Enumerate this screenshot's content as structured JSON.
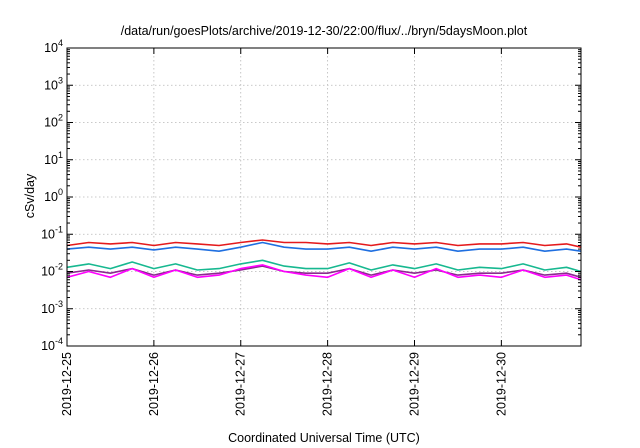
{
  "chart_data": {
    "type": "line",
    "title": "/data/run/goesPlots/archive/2019-12-30/22:00/flux/../bryn/5daysMoon.plot",
    "xlabel": "Coordinated Universal Time (UTC)",
    "ylabel": "cSv/day",
    "y_scale": "log",
    "ylim": [
      0.0001,
      10000
    ],
    "xlim": [
      "2019-12-25 00:00",
      "2019-12-30 22:00"
    ],
    "grid": true,
    "x_ticks": [
      "2019-12-25",
      "2019-12-26",
      "2019-12-27",
      "2019-12-28",
      "2019-12-29",
      "2019-12-30"
    ],
    "y_ticks": [
      {
        "value": 0.0001,
        "base": "10",
        "exp": "-4"
      },
      {
        "value": 0.001,
        "base": "10",
        "exp": "-3"
      },
      {
        "value": 0.01,
        "base": "10",
        "exp": "-2"
      },
      {
        "value": 0.1,
        "base": "10",
        "exp": "-1"
      },
      {
        "value": 1,
        "base": "10",
        "exp": "0"
      },
      {
        "value": 10,
        "base": "10",
        "exp": "1"
      },
      {
        "value": 100,
        "base": "10",
        "exp": "2"
      },
      {
        "value": 1000,
        "base": "10",
        "exp": "3"
      },
      {
        "value": 10000,
        "base": "10",
        "exp": "4"
      }
    ],
    "series": [
      {
        "color": "#e41a1c",
        "x": [
          "2019-12-25 00:00",
          "2019-12-25 06:00",
          "2019-12-25 12:00",
          "2019-12-25 18:00",
          "2019-12-26 00:00",
          "2019-12-26 06:00",
          "2019-12-26 12:00",
          "2019-12-26 18:00",
          "2019-12-27 00:00",
          "2019-12-27 06:00",
          "2019-12-27 12:00",
          "2019-12-27 18:00",
          "2019-12-28 00:00",
          "2019-12-28 06:00",
          "2019-12-28 12:00",
          "2019-12-28 18:00",
          "2019-12-29 00:00",
          "2019-12-29 06:00",
          "2019-12-29 12:00",
          "2019-12-29 18:00",
          "2019-12-30 00:00",
          "2019-12-30 06:00",
          "2019-12-30 12:00",
          "2019-12-30 18:00",
          "2019-12-30 22:00"
        ],
        "y": [
          0.05,
          0.06,
          0.055,
          0.06,
          0.05,
          0.06,
          0.055,
          0.05,
          0.06,
          0.07,
          0.06,
          0.06,
          0.055,
          0.06,
          0.05,
          0.06,
          0.055,
          0.06,
          0.05,
          0.055,
          0.055,
          0.06,
          0.05,
          0.055,
          0.045
        ]
      },
      {
        "color": "#1f6fe0",
        "x": [
          "2019-12-25 00:00",
          "2019-12-25 06:00",
          "2019-12-25 12:00",
          "2019-12-25 18:00",
          "2019-12-26 00:00",
          "2019-12-26 06:00",
          "2019-12-26 12:00",
          "2019-12-26 18:00",
          "2019-12-27 00:00",
          "2019-12-27 06:00",
          "2019-12-27 12:00",
          "2019-12-27 18:00",
          "2019-12-28 00:00",
          "2019-12-28 06:00",
          "2019-12-28 12:00",
          "2019-12-28 18:00",
          "2019-12-29 00:00",
          "2019-12-29 06:00",
          "2019-12-29 12:00",
          "2019-12-29 18:00",
          "2019-12-30 00:00",
          "2019-12-30 06:00",
          "2019-12-30 12:00",
          "2019-12-30 18:00",
          "2019-12-30 22:00"
        ],
        "y": [
          0.04,
          0.045,
          0.04,
          0.045,
          0.038,
          0.045,
          0.04,
          0.035,
          0.045,
          0.06,
          0.045,
          0.04,
          0.04,
          0.045,
          0.035,
          0.045,
          0.04,
          0.045,
          0.035,
          0.04,
          0.04,
          0.045,
          0.035,
          0.04,
          0.035
        ]
      },
      {
        "color": "#17b890",
        "x": [
          "2019-12-25 00:00",
          "2019-12-25 06:00",
          "2019-12-25 12:00",
          "2019-12-25 18:00",
          "2019-12-26 00:00",
          "2019-12-26 06:00",
          "2019-12-26 12:00",
          "2019-12-26 18:00",
          "2019-12-27 00:00",
          "2019-12-27 06:00",
          "2019-12-27 12:00",
          "2019-12-27 18:00",
          "2019-12-28 00:00",
          "2019-12-28 06:00",
          "2019-12-28 12:00",
          "2019-12-28 18:00",
          "2019-12-29 00:00",
          "2019-12-29 06:00",
          "2019-12-29 12:00",
          "2019-12-29 18:00",
          "2019-12-30 00:00",
          "2019-12-30 06:00",
          "2019-12-30 12:00",
          "2019-12-30 18:00",
          "2019-12-30 22:00"
        ],
        "y": [
          0.013,
          0.016,
          0.012,
          0.018,
          0.012,
          0.016,
          0.011,
          0.012,
          0.016,
          0.02,
          0.014,
          0.012,
          0.012,
          0.017,
          0.011,
          0.015,
          0.012,
          0.016,
          0.011,
          0.013,
          0.012,
          0.016,
          0.011,
          0.013,
          0.01
        ]
      },
      {
        "color": "#8b2a8e",
        "x": [
          "2019-12-25 00:00",
          "2019-12-25 06:00",
          "2019-12-25 12:00",
          "2019-12-25 18:00",
          "2019-12-26 00:00",
          "2019-12-26 06:00",
          "2019-12-26 12:00",
          "2019-12-26 18:00",
          "2019-12-27 00:00",
          "2019-12-27 06:00",
          "2019-12-27 12:00",
          "2019-12-27 18:00",
          "2019-12-28 00:00",
          "2019-12-28 06:00",
          "2019-12-28 12:00",
          "2019-12-28 18:00",
          "2019-12-29 00:00",
          "2019-12-29 06:00",
          "2019-12-29 12:00",
          "2019-12-29 18:00",
          "2019-12-30 00:00",
          "2019-12-30 06:00",
          "2019-12-30 12:00",
          "2019-12-30 18:00",
          "2019-12-30 22:00"
        ],
        "y": [
          0.009,
          0.011,
          0.009,
          0.012,
          0.008,
          0.011,
          0.008,
          0.009,
          0.011,
          0.014,
          0.01,
          0.009,
          0.009,
          0.012,
          0.008,
          0.011,
          0.009,
          0.011,
          0.008,
          0.009,
          0.009,
          0.011,
          0.008,
          0.009,
          0.007
        ]
      },
      {
        "color": "#ff00ff",
        "x": [
          "2019-12-25 00:00",
          "2019-12-25 06:00",
          "2019-12-25 12:00",
          "2019-12-25 18:00",
          "2019-12-26 00:00",
          "2019-12-26 06:00",
          "2019-12-26 12:00",
          "2019-12-26 18:00",
          "2019-12-27 00:00",
          "2019-12-27 06:00",
          "2019-12-27 12:00",
          "2019-12-27 18:00",
          "2019-12-28 00:00",
          "2019-12-28 06:00",
          "2019-12-28 12:00",
          "2019-12-28 18:00",
          "2019-12-29 00:00",
          "2019-12-29 06:00",
          "2019-12-29 12:00",
          "2019-12-29 18:00",
          "2019-12-30 00:00",
          "2019-12-30 06:00",
          "2019-12-30 12:00",
          "2019-12-30 18:00",
          "2019-12-30 22:00"
        ],
        "y": [
          0.007,
          0.01,
          0.007,
          0.012,
          0.007,
          0.011,
          0.007,
          0.008,
          0.012,
          0.015,
          0.01,
          0.008,
          0.007,
          0.012,
          0.007,
          0.011,
          0.007,
          0.012,
          0.007,
          0.008,
          0.007,
          0.011,
          0.007,
          0.008,
          0.006
        ]
      }
    ]
  }
}
